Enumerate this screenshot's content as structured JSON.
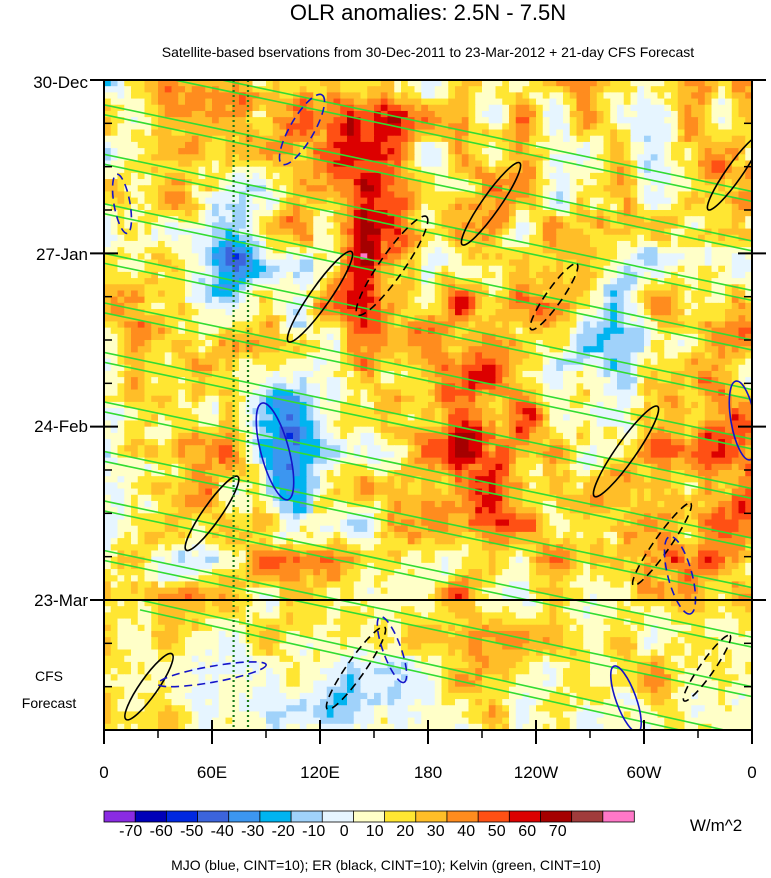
{
  "chart_data": {
    "type": "heatmap",
    "title": "OLR anomalies: 2.5N - 7.5N",
    "subtitle": "Satellite-based bservations from 30-Dec-2011 to 23-Mar-2012 + 21-day CFS Forecast",
    "y_axis": {
      "ticks": [
        "30-Dec",
        "27-Jan",
        "24-Feb",
        "23-Mar"
      ],
      "tick_days": [
        0,
        28,
        56,
        84
      ],
      "range_days": [
        0,
        105
      ],
      "reversed": true,
      "forecast_label_line1": "CFS",
      "forecast_label_line2": "Forecast",
      "forecast_start_day": 84
    },
    "x_axis": {
      "ticks": [
        "0",
        "60E",
        "120E",
        "180",
        "120W",
        "60W",
        "0"
      ],
      "tick_longitudes": [
        0,
        60,
        120,
        180,
        240,
        300,
        360
      ],
      "range": [
        0,
        360
      ]
    },
    "colorbar": {
      "labels": [
        "-70",
        "-60",
        "-50",
        "-40",
        "-30",
        "-20",
        "-10",
        "0",
        "10",
        "20",
        "30",
        "40",
        "50",
        "60",
        "70"
      ],
      "levels": [
        -70,
        -60,
        -50,
        -40,
        -30,
        -20,
        -10,
        0,
        10,
        20,
        30,
        40,
        50,
        60,
        70
      ],
      "colors": [
        "#8a2be2",
        "#0000b8",
        "#0028e0",
        "#3c64dc",
        "#3c96f0",
        "#00b4f0",
        "#a0d2fa",
        "#e6f5ff",
        "#ffffc8",
        "#ffe632",
        "#ffbe28",
        "#ff8c1e",
        "#ff5014",
        "#dc0000",
        "#a50000",
        "#a03c3c",
        "#ff78c8"
      ],
      "units": "W/m^2"
    },
    "footer": "MJO (blue, CINT=10); ER (black, CINT=10); Kelvin (green, CINT=10)",
    "contour_colors": {
      "mjo": "#1414c8",
      "er": "#000000",
      "kelvin": "#32dc32",
      "reference_lines": "#1a7a1a"
    },
    "reference_longitudes": [
      72,
      80
    ]
  }
}
